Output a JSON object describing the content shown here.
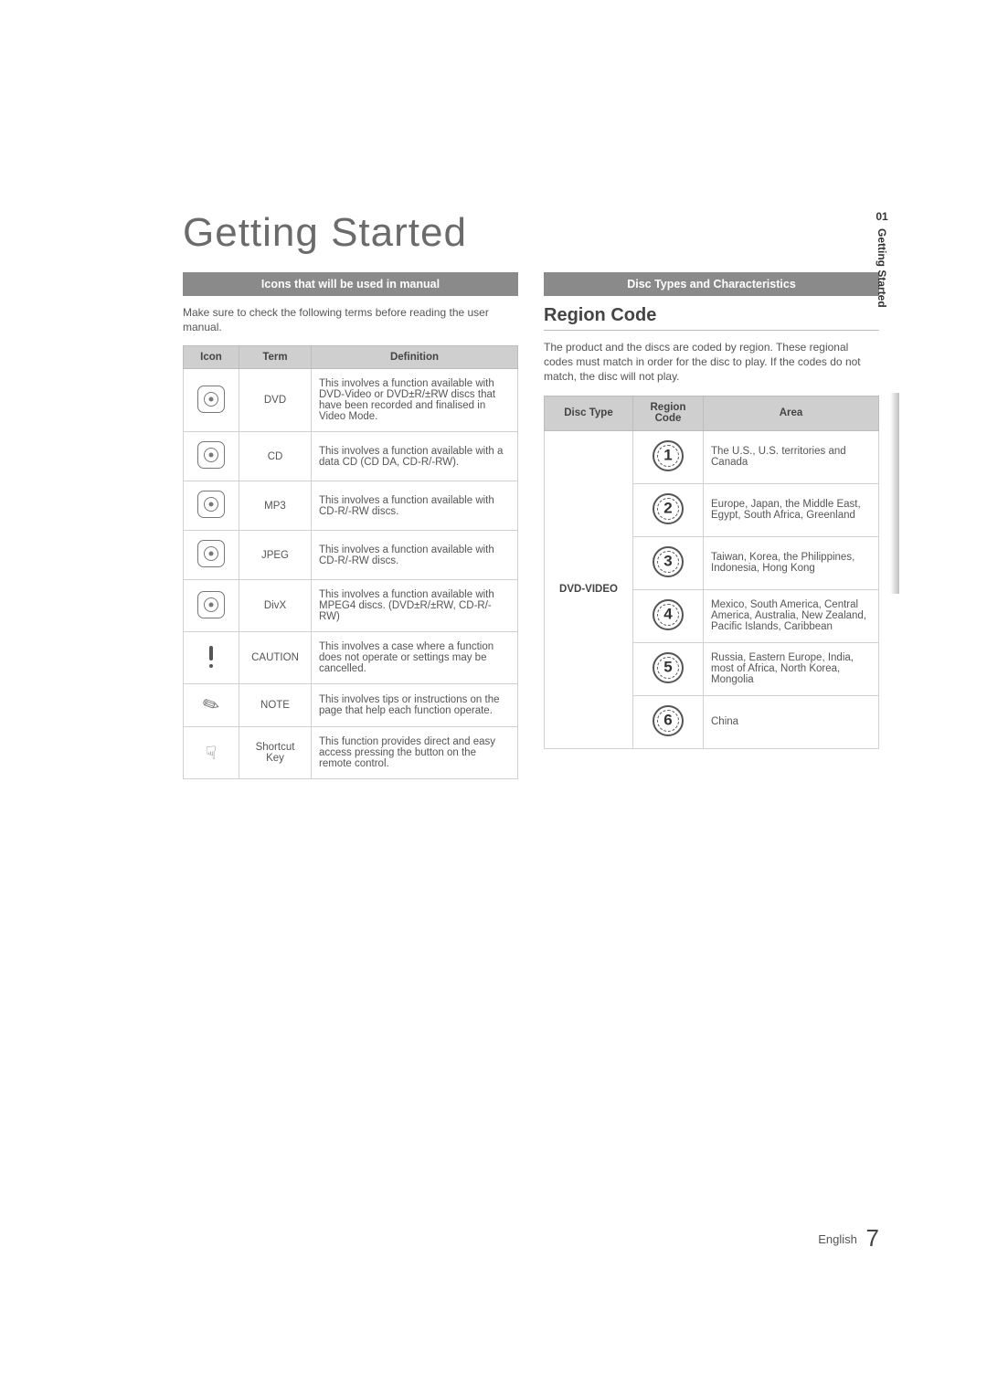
{
  "title": "Getting Started",
  "side": {
    "num": "01",
    "label": "Getting Started"
  },
  "left": {
    "bar": "Icons that will be used in manual",
    "intro": "Make sure to check the following terms before reading the user manual.",
    "headers": [
      "Icon",
      "Term",
      "Definition"
    ],
    "rows": [
      {
        "iconType": "disc",
        "term": "DVD",
        "def": "This involves a function available with DVD-Video or DVD±R/±RW discs that have been recorded and finalised in Video Mode."
      },
      {
        "iconType": "disc",
        "term": "CD",
        "def": "This involves a function available with a data CD (CD DA, CD-R/-RW)."
      },
      {
        "iconType": "disc",
        "term": "MP3",
        "def": "This involves a function available with CD-R/-RW discs."
      },
      {
        "iconType": "disc",
        "term": "JPEG",
        "def": "This involves a function available with CD-R/-RW discs."
      },
      {
        "iconType": "disc",
        "term": "DivX",
        "def": "This involves a function available with MPEG4 discs. (DVD±R/±RW, CD-R/-RW)"
      },
      {
        "iconType": "caution",
        "term": "CAUTION",
        "def": "This involves a case where a function does not operate or settings may be cancelled."
      },
      {
        "iconType": "note",
        "term": "NOTE",
        "def": "This involves tips or instructions on the page that help each function operate."
      },
      {
        "iconType": "shortcut",
        "term": "Shortcut Key",
        "def": "This function provides direct and easy access pressing the button on the remote control."
      }
    ]
  },
  "right": {
    "bar": "Disc Types and Characteristics",
    "subheading": "Region Code",
    "intro": "The product and the discs are coded by region. These regional codes must match in order for the disc to play. If the codes do not match, the disc will not play.",
    "headers": [
      "Disc Type",
      "Region Code",
      "Area"
    ],
    "discType": "DVD-VIDEO",
    "rows": [
      {
        "code": "1",
        "area": "The U.S., U.S. territories and Canada"
      },
      {
        "code": "2",
        "area": "Europe, Japan, the Middle East, Egypt, South Africa, Greenland"
      },
      {
        "code": "3",
        "area": "Taiwan, Korea, the Philippines, Indonesia, Hong Kong"
      },
      {
        "code": "4",
        "area": "Mexico, South America, Central America, Australia, New Zealand, Pacific Islands, Caribbean"
      },
      {
        "code": "5",
        "area": "Russia, Eastern Europe, India, most of Africa, North Korea, Mongolia"
      },
      {
        "code": "6",
        "area": "China"
      }
    ]
  },
  "footer": {
    "lang": "English",
    "page": "7"
  },
  "colors": {
    "barBg": "#8a8a8a",
    "barText": "#ffffff",
    "headerBg": "#cfcfcf",
    "border": "#d0d0d0",
    "text": "#555555"
  }
}
